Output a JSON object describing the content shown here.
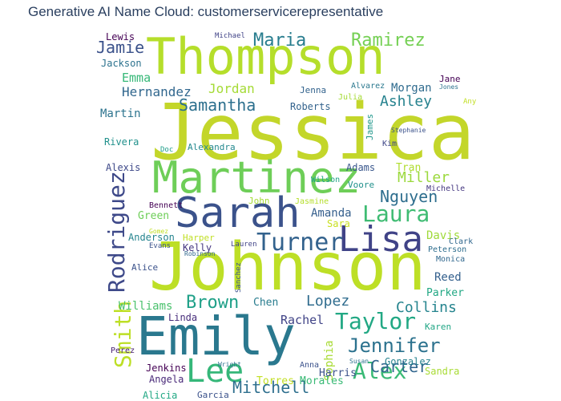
{
  "title": "Generative AI Name Cloud: customerservicerepresentative",
  "words": [
    {
      "text": "Jessica",
      "color": "#c3d62a"
    },
    {
      "text": "Johnson",
      "color": "#bddf26"
    },
    {
      "text": "Thompson",
      "color": "#b5de2b"
    },
    {
      "text": "Emily",
      "color": "#2a788e"
    },
    {
      "text": "Martinez",
      "color": "#6ece58"
    },
    {
      "text": "Sarah",
      "color": "#3b528b"
    },
    {
      "text": "Lisa",
      "color": "#404387"
    },
    {
      "text": "Lee",
      "color": "#35b779"
    },
    {
      "text": "Turner",
      "color": "#33628d"
    },
    {
      "text": "Laura",
      "color": "#3fbc73"
    },
    {
      "text": "Rodriguez",
      "color": "#3e4989"
    },
    {
      "text": "Smith",
      "color": "#bddf26"
    },
    {
      "text": "Taylor",
      "color": "#22a884"
    },
    {
      "text": "Alex",
      "color": "#3aba76"
    },
    {
      "text": "Jennifer",
      "color": "#2c728e"
    },
    {
      "text": "Brown",
      "color": "#1fa088"
    },
    {
      "text": "Mitchell",
      "color": "#2e6f8e"
    },
    {
      "text": "Carter",
      "color": "#31668e"
    },
    {
      "text": "Ramirez",
      "color": "#75d054"
    },
    {
      "text": "Maria",
      "color": "#287d8e"
    },
    {
      "text": "Samantha",
      "color": "#2d708e"
    },
    {
      "text": "Nguyen",
      "color": "#2e6e8e"
    },
    {
      "text": "Ashley",
      "color": "#26828e"
    },
    {
      "text": "Miller",
      "color": "#9bd93c"
    },
    {
      "text": "Collins",
      "color": "#25848e"
    },
    {
      "text": "Lopez",
      "color": "#2f6c8e"
    },
    {
      "text": "Hernandez",
      "color": "#31678e"
    },
    {
      "text": "Jordan",
      "color": "#a5db36"
    },
    {
      "text": "Emma",
      "color": "#37b878"
    },
    {
      "text": "Jamie",
      "color": "#3b528b"
    },
    {
      "text": "Rachel",
      "color": "#414487"
    },
    {
      "text": "Amanda",
      "color": "#355f8d"
    },
    {
      "text": "Williams",
      "color": "#4ac16d"
    },
    {
      "text": "Davis",
      "color": "#9fda3a"
    },
    {
      "text": "Martin",
      "color": "#2c738e"
    },
    {
      "text": "Morgan",
      "color": "#2f6b8e"
    },
    {
      "text": "Tran",
      "color": "#b0dd2f"
    },
    {
      "text": "Sophia",
      "color": "#a8db34"
    },
    {
      "text": "Chen",
      "color": "#287c8e"
    },
    {
      "text": "Reed",
      "color": "#34608d"
    },
    {
      "text": "Parker",
      "color": "#22a884"
    },
    {
      "text": "Gonzalez",
      "color": "#26828e"
    },
    {
      "text": "Sandra",
      "color": "#a8db34"
    },
    {
      "text": "Harris",
      "color": "#3b528b"
    },
    {
      "text": "Torres",
      "color": "#c2df23"
    },
    {
      "text": "Morales",
      "color": "#3aba76"
    },
    {
      "text": "Jackson",
      "color": "#2c728e"
    },
    {
      "text": "Lewis",
      "color": "#440154"
    },
    {
      "text": "Roberts",
      "color": "#33638d"
    },
    {
      "text": "Adams",
      "color": "#39568c"
    },
    {
      "text": "Green",
      "color": "#6ece58"
    },
    {
      "text": "Anderson",
      "color": "#25848e"
    },
    {
      "text": "Alexandra",
      "color": "#23888e"
    },
    {
      "text": "Rivera",
      "color": "#21918c"
    },
    {
      "text": "Alexis",
      "color": "#3e4989"
    },
    {
      "text": "Karen",
      "color": "#21a685"
    },
    {
      "text": "Sara",
      "color": "#c8e020"
    },
    {
      "text": "Kelly",
      "color": "#453781"
    },
    {
      "text": "Harper",
      "color": "#c0df25"
    },
    {
      "text": "Linda",
      "color": "#472d7b"
    },
    {
      "text": "Alicia",
      "color": "#22a884"
    },
    {
      "text": "Garcia",
      "color": "#3b528b"
    },
    {
      "text": "Angela",
      "color": "#482878"
    },
    {
      "text": "Jenkins",
      "color": "#440154"
    },
    {
      "text": "Jane",
      "color": "#440154"
    },
    {
      "text": "Alvarez",
      "color": "#2a788e"
    },
    {
      "text": "Jenna",
      "color": "#33638d"
    },
    {
      "text": "Julia",
      "color": "#a5db36"
    },
    {
      "text": "James",
      "color": "#1f978b"
    },
    {
      "text": "Kim",
      "color": "#3f4788"
    },
    {
      "text": "Voore",
      "color": "#21918c"
    },
    {
      "text": "Wilson",
      "color": "#20a386"
    },
    {
      "text": "Jasmine",
      "color": "#b5de2b"
    },
    {
      "text": "John",
      "color": "#a5db36"
    },
    {
      "text": "Michelle",
      "color": "#453781"
    },
    {
      "text": "Bennett",
      "color": "#440154"
    },
    {
      "text": "Peterson",
      "color": "#2e6e8e"
    },
    {
      "text": "Monica",
      "color": "#31688e"
    },
    {
      "text": "Clark",
      "color": "#31688e"
    },
    {
      "text": "Alice",
      "color": "#3b528b"
    },
    {
      "text": "Any",
      "color": "#c2df23"
    },
    {
      "text": "Michael",
      "color": "#404387"
    },
    {
      "text": "Doc",
      "color": "#1f9e89"
    },
    {
      "text": "Lauren",
      "color": "#404387"
    },
    {
      "text": "Sanchez",
      "color": "#3b528b"
    },
    {
      "text": "Anna",
      "color": "#3b528b"
    },
    {
      "text": "Susan",
      "color": "#2c728e"
    },
    {
      "text": "Perez",
      "color": "#482173"
    },
    {
      "text": "Evans",
      "color": "#3b528b"
    },
    {
      "text": "Gomez",
      "color": "#c2df23"
    },
    {
      "text": "Robinson",
      "color": "#31688e"
    },
    {
      "text": "Stephanie",
      "color": "#3b528b"
    },
    {
      "text": "Wright",
      "color": "#2c728e"
    },
    {
      "text": "Jones",
      "color": "#2c728e"
    }
  ]
}
